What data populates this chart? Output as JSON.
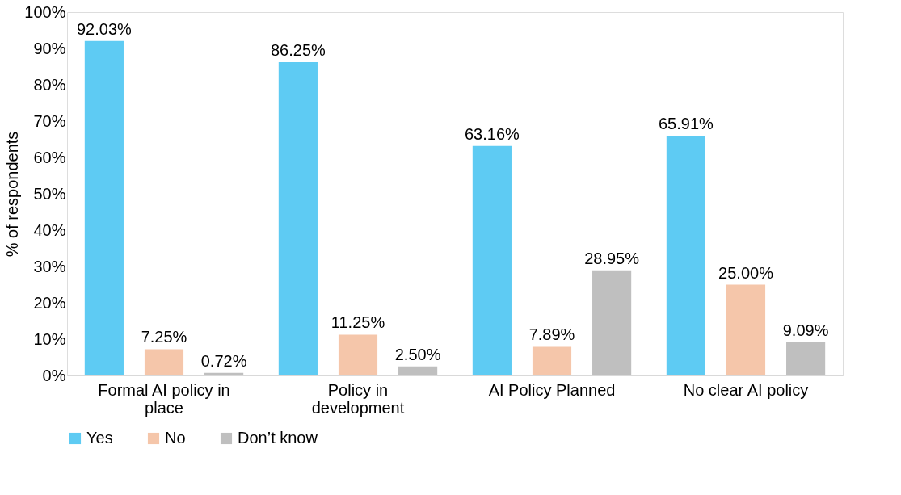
{
  "chart_data": {
    "type": "bar",
    "ylabel": "% of respondents",
    "categories": [
      "Formal AI policy in place",
      "Policy in development",
      "AI Policy Planned",
      "No clear AI policy"
    ],
    "series": [
      {
        "name": "Yes",
        "color": "#5ecbf3",
        "values": [
          92.03,
          86.25,
          63.16,
          65.91
        ],
        "value_labels": [
          "92.03%",
          "86.25%",
          "63.16%",
          "65.91%"
        ]
      },
      {
        "name": "No",
        "color": "#f5c6aa",
        "values": [
          7.25,
          11.25,
          7.89,
          25.0
        ],
        "value_labels": [
          "7.25%",
          "11.25%",
          "7.89%",
          "25.00%"
        ]
      },
      {
        "name": "Don’t know",
        "color": "#bfbfbf",
        "values": [
          0.72,
          2.5,
          28.95,
          9.09
        ],
        "value_labels": [
          "0.72%",
          "2.50%",
          "28.95%",
          "9.09%"
        ]
      }
    ],
    "ylim": [
      0,
      100
    ],
    "yticks": [
      {
        "value": 0,
        "label": "0%"
      },
      {
        "value": 10,
        "label": "10%"
      },
      {
        "value": 20,
        "label": "20%"
      },
      {
        "value": 30,
        "label": "30%"
      },
      {
        "value": 40,
        "label": "40%"
      },
      {
        "value": 50,
        "label": "50%"
      },
      {
        "value": 60,
        "label": "60%"
      },
      {
        "value": 70,
        "label": "70%"
      },
      {
        "value": 80,
        "label": "80%"
      },
      {
        "value": 90,
        "label": "90%"
      },
      {
        "value": 100,
        "label": "100%"
      }
    ],
    "grid": false,
    "legend": "bottom"
  }
}
